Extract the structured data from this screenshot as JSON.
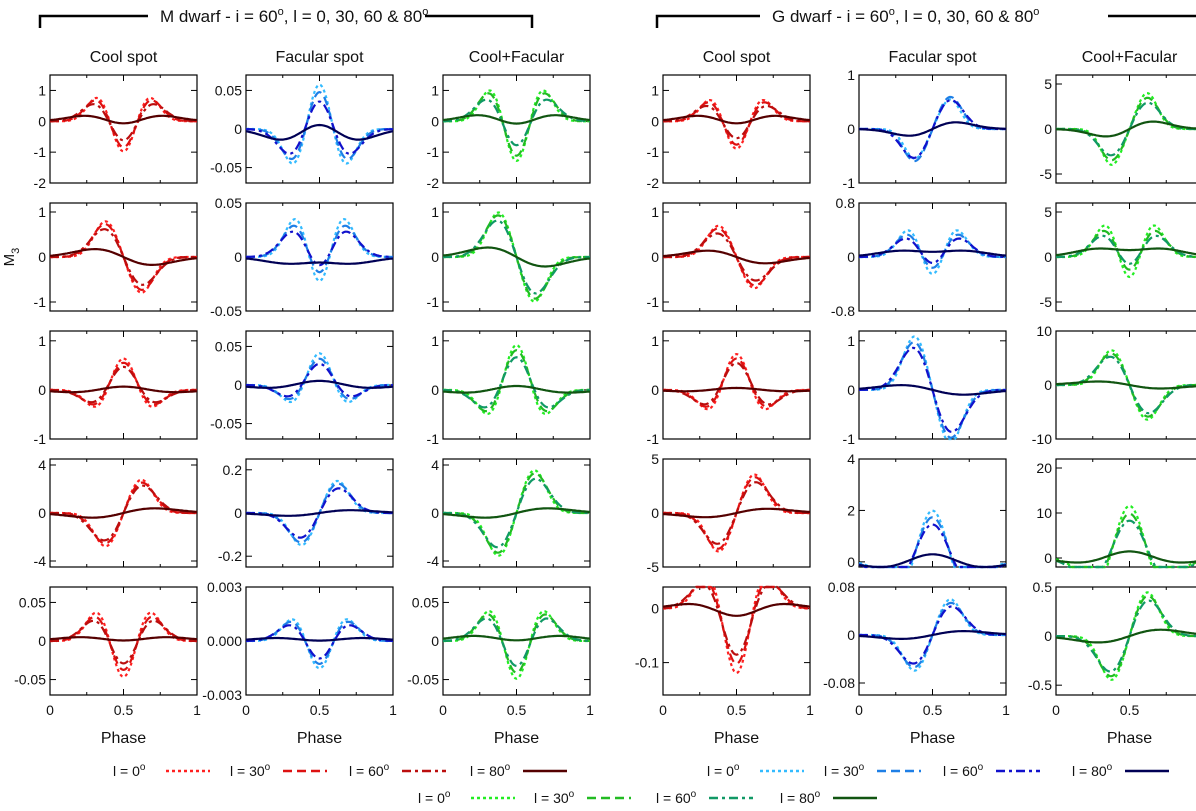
{
  "figure": {
    "groups": [
      {
        "title_main": "M dwarf - i = 60",
        "title_sup": "o",
        "title_rest": ", l = 0, 30, 60 & 80",
        "title_sup2": "o"
      },
      {
        "title_main": "G dwarf - i = 60",
        "title_sup": "o",
        "title_rest": ", l = 0, 30, 60 & 80",
        "title_sup2": "o"
      }
    ],
    "column_titles": [
      "Cool spot",
      "Facular spot",
      "Cool+Facular",
      "Cool spot",
      "Facular spot",
      "Cool+Facular"
    ],
    "row_ylabels": [
      "M",
      "M3",
      "M",
      "M",
      "M"
    ],
    "row_ylabel_visible": [
      "",
      "M3",
      "",
      "",
      ""
    ],
    "xlabel": "Phase",
    "x_tick_labels": [
      "0",
      "0.5",
      "1"
    ]
  },
  "legend": {
    "line1": [
      {
        "label": "l = 0",
        "sup": "o"
      },
      {
        "label": "l = 30",
        "sup": "o"
      },
      {
        "label": "l = 60",
        "sup": "o"
      },
      {
        "label": "l = 80",
        "sup": "o"
      },
      {
        "label": "l = 0",
        "sup": "o"
      },
      {
        "label": "l = 30",
        "sup": "o"
      },
      {
        "label": "l = 60",
        "sup": "o"
      },
      {
        "label": "l = 80",
        "sup": "o"
      }
    ],
    "line2": [
      {
        "label": "l = 0",
        "sup": "o"
      },
      {
        "label": "l = 30",
        "sup": "o"
      },
      {
        "label": "l = 60",
        "sup": "o"
      },
      {
        "label": "l = 80",
        "sup": "o"
      }
    ]
  },
  "colors": {
    "red": [
      "#ff2020",
      "#dd1111",
      "#bb0e0e",
      "#550000"
    ],
    "blue": [
      "#33bbff",
      "#1e7fe6",
      "#1111cc",
      "#000055"
    ],
    "green": [
      "#22ee22",
      "#22bb22",
      "#119966",
      "#115511"
    ]
  },
  "chart_data": {
    "type": "line",
    "x": "phase 0..1",
    "series_names": [
      "l = 0°",
      "l = 30°",
      "l = 60°",
      "l = 80°"
    ],
    "shapes": [
      "sym",
      "odd",
      "even",
      "sym2",
      "sym4"
    ],
    "panels": [
      [
        {
          "col": 0,
          "ylim": [
            -2,
            1.5
          ],
          "yticks": [
            -2,
            -1,
            0,
            1
          ],
          "ytick_labels": [
            "-2",
            "-1",
            "0",
            "1"
          ],
          "palette": "red",
          "shape": "sym",
          "amps": [
            1.1,
            1.05,
            0.95,
            0.45
          ],
          "widths": [
            0.075,
            0.085,
            0.1,
            0.16
          ]
        },
        {
          "col": 1,
          "ylim": [
            -0.07,
            0.07
          ],
          "yticks": [
            -0.05,
            0,
            0.05
          ],
          "ytick_labels": [
            "-0.05",
            "0",
            "0.05"
          ],
          "palette": "blue",
          "shape": "sym",
          "amps": [
            -0.065,
            -0.06,
            -0.055,
            -0.035
          ],
          "widths": [
            0.075,
            0.085,
            0.1,
            0.16
          ]
        },
        {
          "col": 2,
          "ylim": [
            -2,
            1.5
          ],
          "yticks": [
            -2,
            -1,
            0,
            1
          ],
          "ytick_labels": [
            "-2",
            "-1",
            "0",
            "1"
          ],
          "palette": "green",
          "shape": "sym",
          "amps": [
            1.45,
            1.4,
            1.2,
            0.5
          ],
          "widths": [
            0.075,
            0.085,
            0.1,
            0.16
          ]
        },
        {
          "col": 3,
          "ylim": [
            -2,
            1.5
          ],
          "yticks": [
            -2,
            -1,
            0,
            1
          ],
          "ytick_labels": [
            "-2",
            "-1",
            "0",
            "1"
          ],
          "palette": "red",
          "shape": "sym",
          "amps": [
            1.0,
            0.95,
            0.85,
            0.45
          ],
          "widths": [
            0.075,
            0.085,
            0.1,
            0.16
          ]
        },
        {
          "col": 4,
          "ylim": [
            -1,
            1
          ],
          "yticks": [
            -1,
            0,
            1
          ],
          "ytick_labels": [
            "-1",
            "0",
            "1"
          ],
          "palette": "blue",
          "shape": "odd",
          "amps": [
            -0.55,
            -0.6,
            -0.55,
            -0.15
          ],
          "widths": [
            0.07,
            0.08,
            0.09,
            0.14
          ]
        },
        {
          "col": 5,
          "ylim": [
            -6,
            6
          ],
          "yticks": [
            -5,
            0,
            5
          ],
          "ytick_labels": [
            "-5",
            "0",
            "5"
          ],
          "palette": "green",
          "shape": "odd",
          "amps": [
            -4,
            -3.5,
            -3,
            -1
          ],
          "widths": [
            0.07,
            0.08,
            0.09,
            0.14
          ]
        }
      ],
      [
        {
          "col": 0,
          "ylim": [
            -1.2,
            1.2
          ],
          "yticks": [
            -1,
            0,
            1
          ],
          "ytick_labels": [
            "-1",
            "0",
            "1"
          ],
          "palette": "red",
          "shape": "odd",
          "amps": [
            0.8,
            0.75,
            0.65,
            0.25
          ],
          "widths": [
            0.08,
            0.09,
            0.1,
            0.18
          ]
        },
        {
          "col": 1,
          "ylim": [
            -0.05,
            0.05
          ],
          "yticks": [
            -0.05,
            0,
            0.05
          ],
          "ytick_labels": [
            "-0.05",
            "0",
            "0.05"
          ],
          "palette": "blue",
          "shape": "sym4",
          "amps": [
            -0.04,
            -0.035,
            -0.03,
            0.01
          ],
          "widths": [
            0.08,
            0.09,
            0.1,
            0.18
          ]
        },
        {
          "col": 2,
          "ylim": [
            -1.2,
            1.2
          ],
          "yticks": [
            -1,
            0,
            1
          ],
          "ytick_labels": [
            "-1",
            "0",
            "1"
          ],
          "palette": "green",
          "shape": "odd",
          "amps": [
            1.0,
            0.95,
            0.85,
            0.3
          ],
          "widths": [
            0.08,
            0.09,
            0.1,
            0.18
          ]
        },
        {
          "col": 3,
          "ylim": [
            -1.2,
            1.2
          ],
          "yticks": [
            -1,
            0,
            1
          ],
          "ytick_labels": [
            "-1",
            "0",
            "1"
          ],
          "palette": "red",
          "shape": "odd",
          "amps": [
            0.7,
            0.65,
            0.55,
            0.2
          ],
          "widths": [
            0.08,
            0.09,
            0.1,
            0.18
          ]
        },
        {
          "col": 4,
          "ylim": [
            -0.8,
            0.8
          ],
          "yticks": [
            -0.8,
            0,
            0.8
          ],
          "ytick_labels": [
            "-0.8",
            "0",
            "0.8"
          ],
          "palette": "blue",
          "shape": "sym4",
          "amps": [
            -0.45,
            -0.4,
            -0.35,
            -0.15
          ],
          "widths": [
            0.08,
            0.09,
            0.1,
            0.18
          ]
        },
        {
          "col": 5,
          "ylim": [
            -6,
            6
          ],
          "yticks": [
            -5,
            0,
            5
          ],
          "ytick_labels": [
            "-5",
            "0",
            "5"
          ],
          "palette": "green",
          "shape": "sym4",
          "amps": [
            -4,
            -3.5,
            -3,
            -1.5
          ],
          "widths": [
            0.08,
            0.09,
            0.1,
            0.18
          ]
        }
      ],
      [
        {
          "col": 0,
          "ylim": [
            -1,
            1.2
          ],
          "yticks": [
            -1,
            0,
            1
          ],
          "ytick_labels": [
            "-1",
            "0",
            "1"
          ],
          "palette": "red",
          "shape": "sym2",
          "amps": [
            0.7,
            0.65,
            0.6,
            0.25
          ],
          "widths": [
            0.08,
            0.09,
            0.1,
            0.2
          ]
        },
        {
          "col": 1,
          "ylim": [
            -0.07,
            0.07
          ],
          "yticks": [
            -0.05,
            0,
            0.05
          ],
          "ytick_labels": [
            "-0.05",
            "0",
            "0.05"
          ],
          "palette": "blue",
          "shape": "sym2",
          "amps": [
            0.045,
            0.04,
            0.035,
            0.02
          ],
          "widths": [
            0.08,
            0.09,
            0.1,
            0.2
          ]
        },
        {
          "col": 2,
          "ylim": [
            -1,
            1.2
          ],
          "yticks": [
            -1,
            0,
            1
          ],
          "ytick_labels": [
            "-1",
            "0",
            "1"
          ],
          "palette": "green",
          "shape": "sym2",
          "amps": [
            1.0,
            0.95,
            0.85,
            0.3
          ],
          "widths": [
            0.08,
            0.09,
            0.1,
            0.2
          ]
        },
        {
          "col": 3,
          "ylim": [
            -1,
            1.2
          ],
          "yticks": [
            -1,
            0,
            1
          ],
          "ytick_labels": [
            "-1",
            "0",
            "1"
          ],
          "palette": "red",
          "shape": "sym2",
          "amps": [
            0.8,
            0.75,
            0.7,
            0.15
          ],
          "widths": [
            0.08,
            0.09,
            0.1,
            0.2
          ]
        },
        {
          "col": 4,
          "ylim": [
            -1,
            1.2
          ],
          "yticks": [
            -1,
            0,
            1
          ],
          "ytick_labels": [
            "-1",
            "0",
            "1"
          ],
          "palette": "blue",
          "shape": "odd",
          "amps": [
            1.1,
            1.0,
            0.9,
            0.15
          ],
          "widths": [
            0.08,
            0.09,
            0.1,
            0.2
          ]
        },
        {
          "col": 5,
          "ylim": [
            -10,
            10
          ],
          "yticks": [
            -10,
            0,
            10
          ],
          "ytick_labels": [
            "-10",
            "0",
            "10"
          ],
          "palette": "green",
          "shape": "odd",
          "amps": [
            6.5,
            6,
            5.5,
            1
          ],
          "widths": [
            0.08,
            0.09,
            0.1,
            0.2
          ]
        }
      ],
      [
        {
          "col": 0,
          "ylim": [
            -4.5,
            4.5
          ],
          "yticks": [
            -4,
            0,
            4
          ],
          "ytick_labels": [
            "-4",
            "0",
            "4"
          ],
          "palette": "red",
          "shape": "odd",
          "amps": [
            -2.8,
            -2.6,
            -2.4,
            -0.6
          ],
          "widths": [
            0.08,
            0.09,
            0.1,
            0.2
          ]
        },
        {
          "col": 1,
          "ylim": [
            -0.25,
            0.25
          ],
          "yticks": [
            -0.2,
            0,
            0.2
          ],
          "ytick_labels": [
            "-0.2",
            "0",
            "0.2"
          ],
          "palette": "blue",
          "shape": "odd",
          "amps": [
            -0.15,
            -0.14,
            -0.12,
            -0.02
          ],
          "widths": [
            0.08,
            0.09,
            0.1,
            0.2
          ]
        },
        {
          "col": 2,
          "ylim": [
            -4.5,
            4.5
          ],
          "yticks": [
            -4,
            0,
            4
          ],
          "ytick_labels": [
            "-4",
            "0",
            "4"
          ],
          "palette": "green",
          "shape": "odd",
          "amps": [
            -3.6,
            -3.4,
            -3.0,
            -0.6
          ],
          "widths": [
            0.08,
            0.09,
            0.1,
            0.2
          ]
        },
        {
          "col": 3,
          "ylim": [
            -5,
            5
          ],
          "yticks": [
            -5,
            0,
            5
          ],
          "ytick_labels": [
            "-5",
            "0",
            "5"
          ],
          "palette": "red",
          "shape": "odd",
          "amps": [
            -3.6,
            -3.4,
            -3.0,
            -0.6
          ],
          "widths": [
            0.08,
            0.09,
            0.1,
            0.2
          ]
        },
        {
          "col": 4,
          "ylim": [
            -0.2,
            4
          ],
          "yticks": [
            0,
            2,
            4
          ],
          "ytick_labels": [
            "0",
            "2",
            "4"
          ],
          "palette": "blue",
          "shape": "sym2",
          "amps": [
            3.1,
            3.0,
            2.8,
            1.1
          ],
          "widths": [
            0.12,
            0.13,
            0.14,
            0.2
          ]
        },
        {
          "col": 5,
          "ylim": [
            -2,
            22
          ],
          "yticks": [
            0,
            10,
            20
          ],
          "ytick_labels": [
            "0",
            "10",
            "20"
          ],
          "palette": "green",
          "shape": "sym2",
          "amps": [
            18,
            17,
            16,
            5.5
          ],
          "widths": [
            0.12,
            0.13,
            0.14,
            0.2
          ]
        }
      ],
      [
        {
          "col": 0,
          "ylim": [
            -0.07,
            0.07
          ],
          "yticks": [
            -0.05,
            0,
            0.05
          ],
          "ytick_labels": [
            "-0.05",
            "0",
            "0.05"
          ],
          "palette": "red",
          "shape": "sym",
          "amps": [
            0.055,
            0.05,
            0.045,
            0.015
          ],
          "widths": [
            0.08,
            0.09,
            0.1,
            0.2
          ]
        },
        {
          "col": 1,
          "ylim": [
            -0.003,
            0.003
          ],
          "yticks": [
            -0.003,
            0,
            0.003
          ],
          "ytick_labels": [
            "-0.003",
            "0.000",
            "0.003"
          ],
          "palette": "blue",
          "shape": "sym",
          "amps": [
            0.0018,
            0.0017,
            0.0015,
            0.0005
          ],
          "widths": [
            0.08,
            0.09,
            0.1,
            0.2
          ]
        },
        {
          "col": 2,
          "ylim": [
            -0.07,
            0.07
          ],
          "yticks": [
            -0.05,
            0,
            0.05
          ],
          "ytick_labels": [
            "-0.05",
            "0",
            "0.05"
          ],
          "palette": "green",
          "shape": "sym",
          "amps": [
            0.058,
            0.055,
            0.05,
            0.02
          ],
          "widths": [
            0.08,
            0.09,
            0.1,
            0.2
          ]
        },
        {
          "col": 3,
          "ylim": [
            -0.16,
            0.04
          ],
          "yticks": [
            -0.1,
            0
          ],
          "ytick_labels": [
            "-0.1",
            "0"
          ],
          "palette": "red",
          "shape": "sym2",
          "amps": [
            -0.14,
            -0.13,
            -0.12,
            -0.04
          ],
          "widths": [
            0.09,
            0.1,
            0.11,
            0.18
          ]
        },
        {
          "col": 4,
          "ylim": [
            -0.1,
            0.08
          ],
          "yticks": [
            -0.08,
            0,
            0.08
          ],
          "ytick_labels": [
            "-0.08",
            "0",
            "0.08"
          ],
          "palette": "blue",
          "shape": "odd",
          "amps": [
            -0.06,
            -0.055,
            -0.05,
            -0.01
          ],
          "widths": [
            0.08,
            0.09,
            0.1,
            0.2
          ]
        },
        {
          "col": 5,
          "ylim": [
            -0.6,
            0.5
          ],
          "yticks": [
            -0.5,
            0,
            0.5
          ],
          "ytick_labels": [
            "-0.5",
            "0",
            "0.5"
          ],
          "palette": "green",
          "shape": "odd",
          "amps": [
            -0.45,
            -0.42,
            -0.38,
            -0.1
          ],
          "widths": [
            0.08,
            0.09,
            0.1,
            0.2
          ]
        }
      ]
    ]
  }
}
